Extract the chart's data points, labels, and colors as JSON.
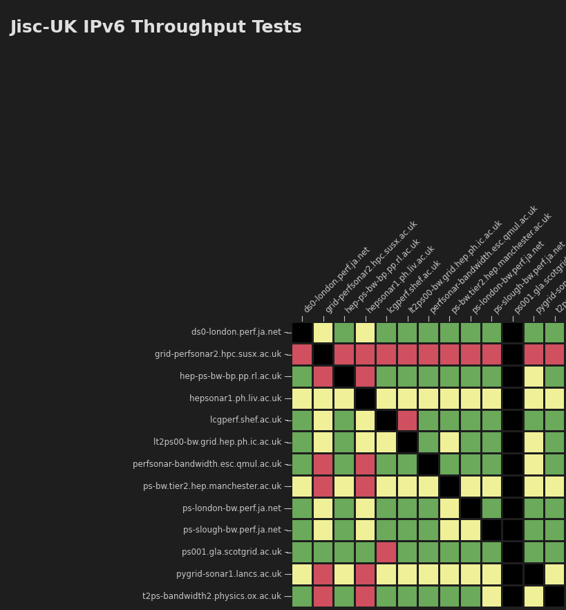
{
  "title": "Jisc-UK IPv6 Throughput Tests",
  "nodes": [
    "ds0-london.perf.ja.net",
    "grid-perfsonar2.hpc.susx.ac.uk",
    "hep-ps-bw-bp.pp.rl.ac.uk",
    "hepsonar1.ph.liv.ac.uk",
    "lcgperf.shef.ac.uk",
    "lt2ps00-bw.grid.hep.ph.ic.ac.uk",
    "perfsonar-bandwidth.esc.qmul.ac.uk",
    "ps-bw.tier2.hep.manchester.ac.uk",
    "ps-london-bw.perf.ja.net",
    "ps-slough-bw.perf.ja.net",
    "ps001.gla.scotgrid.ac.uk",
    "pygrid-sonar1.lancs.ac.uk",
    "t2ps-bandwidth2.physics.ox.ac.uk"
  ],
  "matrix": [
    [
      0,
      2,
      1,
      2,
      1,
      1,
      1,
      1,
      1,
      1,
      0,
      1,
      1
    ],
    [
      3,
      0,
      3,
      3,
      3,
      3,
      3,
      3,
      3,
      3,
      0,
      3,
      3
    ],
    [
      1,
      3,
      0,
      3,
      1,
      1,
      1,
      1,
      1,
      1,
      0,
      2,
      1
    ],
    [
      2,
      2,
      2,
      0,
      2,
      2,
      2,
      2,
      2,
      2,
      0,
      2,
      2
    ],
    [
      1,
      2,
      1,
      2,
      0,
      3,
      1,
      1,
      1,
      1,
      0,
      1,
      1
    ],
    [
      1,
      2,
      1,
      2,
      2,
      0,
      1,
      2,
      1,
      1,
      0,
      2,
      1
    ],
    [
      1,
      3,
      1,
      3,
      1,
      1,
      0,
      1,
      1,
      1,
      0,
      2,
      1
    ],
    [
      2,
      3,
      2,
      3,
      2,
      2,
      2,
      0,
      2,
      2,
      0,
      2,
      2
    ],
    [
      1,
      2,
      1,
      2,
      1,
      1,
      1,
      2,
      0,
      1,
      0,
      1,
      1
    ],
    [
      1,
      2,
      1,
      2,
      1,
      1,
      1,
      2,
      2,
      0,
      0,
      1,
      1
    ],
    [
      1,
      1,
      1,
      1,
      3,
      1,
      1,
      1,
      1,
      1,
      0,
      1,
      1
    ],
    [
      2,
      3,
      2,
      3,
      2,
      2,
      2,
      2,
      2,
      2,
      0,
      0,
      2
    ],
    [
      1,
      3,
      1,
      3,
      1,
      1,
      1,
      1,
      1,
      2,
      0,
      2,
      0
    ]
  ],
  "color_map": {
    "0": "#000000",
    "1": "#6aaa5a",
    "2": "#f0f098",
    "3": "#d05060"
  },
  "background_color": "#1e1e1e",
  "text_color": "#c8c8c8",
  "title_color": "#e0e0e0",
  "title_fontsize": 18,
  "label_fontsize": 8.5
}
